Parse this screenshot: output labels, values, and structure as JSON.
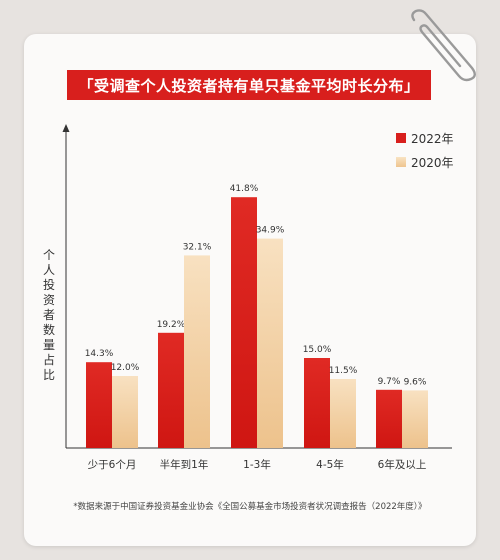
{
  "header": {
    "title": "「受调查个人投资者持有单只基金平均时长分布」"
  },
  "legend": [
    {
      "label": "2022年",
      "color": "#d81f1d"
    },
    {
      "label": "2020年",
      "color": "#f3d2a6"
    }
  ],
  "y_axis_label": [
    "个",
    "人",
    "投",
    "资",
    "者",
    "数",
    "量",
    "占",
    "比"
  ],
  "footnote": "*数据来源于中国证券投资基金业协会《全国公募基金市场投资者状况调查报告（2022年度）》",
  "chart_data": {
    "type": "bar",
    "title": "「受调查个人投资者持有单只基金平均时长分布」",
    "ylabel": "个人投资者数量占比",
    "categories": [
      "少于6个月",
      "半年到1年",
      "1-3年",
      "4-5年",
      "6年及以上"
    ],
    "series": [
      {
        "name": "2022年",
        "color": "#d81f1d",
        "values": [
          14.3,
          19.2,
          41.8,
          15.0,
          9.7
        ],
        "labels": [
          "14.3%",
          "19.2%",
          "41.8%",
          "15.0%",
          "9.7%"
        ]
      },
      {
        "name": "2020年",
        "color": "#f3d2a6",
        "values": [
          12.0,
          32.1,
          34.9,
          11.5,
          9.6
        ],
        "labels": [
          "12.0%",
          "32.1%",
          "34.9%",
          "11.5%",
          "9.6%"
        ]
      }
    ],
    "unit": "%",
    "grid": false,
    "legend_position": "top-right"
  }
}
